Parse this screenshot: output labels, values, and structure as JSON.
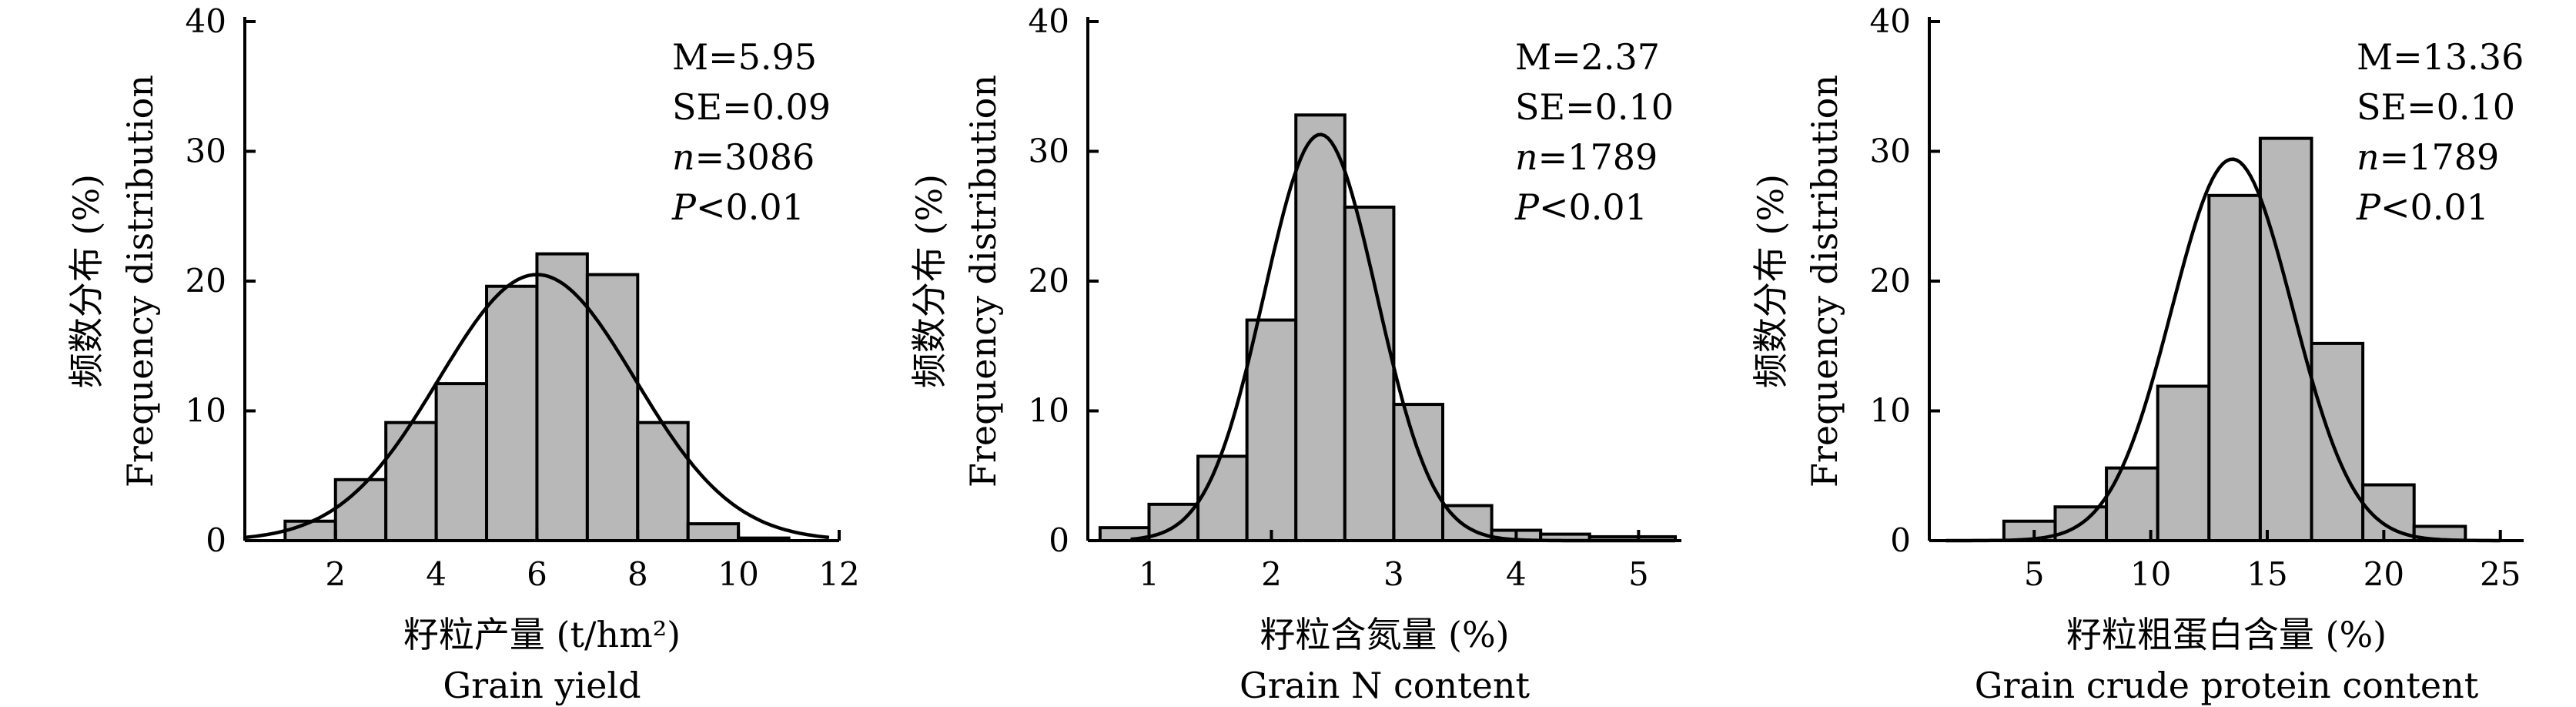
{
  "chart_data": [
    {
      "type": "bar",
      "title": "",
      "ylabel": "频数分布 (%)",
      "ylabel_en": "Frequency distribution",
      "xlabel": "籽粒产量 (t/hm²)",
      "xlabel_en": "Grain yield",
      "xlim": [
        0.2,
        12
      ],
      "ylim": [
        0,
        40
      ],
      "xticks": [
        2,
        4,
        6,
        8,
        10,
        12
      ],
      "yticks": [
        0,
        10,
        20,
        30,
        40
      ],
      "bins": [
        {
          "x0": 1,
          "x1": 2,
          "value": 1.5
        },
        {
          "x0": 2,
          "x1": 3,
          "value": 4.7
        },
        {
          "x0": 3,
          "x1": 4,
          "value": 9.1
        },
        {
          "x0": 4,
          "x1": 5,
          "value": 12.1
        },
        {
          "x0": 5,
          "x1": 6,
          "value": 19.6
        },
        {
          "x0": 6,
          "x1": 7,
          "value": 22.1
        },
        {
          "x0": 7,
          "x1": 8,
          "value": 20.5
        },
        {
          "x0": 8,
          "x1": 9,
          "value": 9.1
        },
        {
          "x0": 9,
          "x1": 10,
          "value": 1.3
        },
        {
          "x0": 10,
          "x1": 11,
          "value": 0.2
        }
      ],
      "normal_fit": {
        "mean": 6.0,
        "peak": 20.5,
        "sd": 1.95,
        "x_range": [
          0.2,
          11.8
        ]
      },
      "stats": {
        "M": "M=5.95",
        "SE": "SE=0.09",
        "n_var": "n",
        "n_val": "=3086",
        "P_var": "P",
        "P_val": "<0.01"
      }
    },
    {
      "type": "bar",
      "title": "",
      "ylabel": "频数分布 (%)",
      "ylabel_en": "Frequency distribution",
      "xlabel": "籽粒含氮量 (%)",
      "xlabel_en": "Grain N content",
      "xlim": [
        0.5,
        5.35
      ],
      "ylim": [
        0,
        40
      ],
      "xticks": [
        1,
        2,
        3,
        4,
        5
      ],
      "yticks": [
        0,
        10,
        20,
        30,
        40
      ],
      "bins": [
        {
          "x0": 0.6,
          "x1": 1.0,
          "value": 1.0
        },
        {
          "x0": 1.0,
          "x1": 1.4,
          "value": 2.8
        },
        {
          "x0": 1.4,
          "x1": 1.8,
          "value": 6.5
        },
        {
          "x0": 1.8,
          "x1": 2.2,
          "value": 17.0
        },
        {
          "x0": 2.2,
          "x1": 2.6,
          "value": 32.8
        },
        {
          "x0": 2.6,
          "x1": 3.0,
          "value": 25.7
        },
        {
          "x0": 3.0,
          "x1": 3.4,
          "value": 10.5
        },
        {
          "x0": 3.4,
          "x1": 3.8,
          "value": 2.7
        },
        {
          "x0": 3.8,
          "x1": 4.2,
          "value": 0.8
        },
        {
          "x0": 4.2,
          "x1": 4.6,
          "value": 0.5
        },
        {
          "x0": 4.6,
          "x1": 5.0,
          "value": 0.3
        },
        {
          "x0": 5.0,
          "x1": 5.3,
          "value": 0.3
        }
      ],
      "normal_fit": {
        "mean": 2.4,
        "peak": 31.3,
        "sd": 0.46,
        "x_range": [
          0.85,
          5.3
        ]
      },
      "stats": {
        "M": "M=2.37",
        "SE": "SE=0.10",
        "n_var": "n",
        "n_val": "=1789",
        "P_var": "P",
        "P_val": "<0.01"
      }
    },
    {
      "type": "bar",
      "title": "",
      "ylabel": "频数分布 (%)",
      "ylabel_en": "Frequency distribution",
      "xlabel": "籽粒粗蛋白含量 (%)",
      "xlabel_en": "Grain crude protein content",
      "xlim": [
        0.5,
        26
      ],
      "ylim": [
        0,
        40
      ],
      "xticks": [
        5,
        10,
        15,
        20,
        25
      ],
      "yticks": [
        0,
        10,
        20,
        30,
        40
      ],
      "bins": [
        {
          "x0": 3.7,
          "x1": 5.9,
          "value": 1.5
        },
        {
          "x0": 5.9,
          "x1": 8.1,
          "value": 2.6
        },
        {
          "x0": 8.1,
          "x1": 10.3,
          "value": 5.6
        },
        {
          "x0": 10.3,
          "x1": 12.5,
          "value": 11.9
        },
        {
          "x0": 12.5,
          "x1": 14.7,
          "value": 26.6
        },
        {
          "x0": 14.7,
          "x1": 16.9,
          "value": 31.0
        },
        {
          "x0": 16.9,
          "x1": 19.1,
          "value": 15.2
        },
        {
          "x0": 19.1,
          "x1": 21.3,
          "value": 4.3
        },
        {
          "x0": 21.3,
          "x1": 23.5,
          "value": 1.1
        }
      ],
      "normal_fit": {
        "mean": 13.5,
        "peak": 29.4,
        "sd": 2.6,
        "x_range": [
          1.2,
          25.0
        ]
      },
      "stats": {
        "M": "M=13.36",
        "SE": "SE=0.10",
        "n_var": "n",
        "n_val": "=1789",
        "P_var": "P",
        "P_val": "<0.01"
      }
    }
  ]
}
